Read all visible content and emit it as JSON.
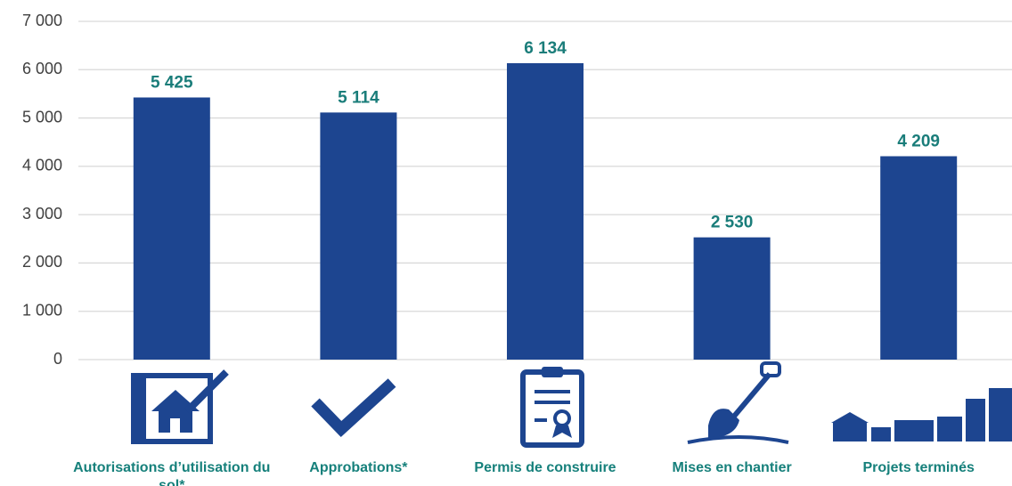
{
  "chart_data": {
    "type": "bar",
    "categories": [
      "Autorisations d’utilisation du sol*",
      "Approbations*",
      "Permis de construire",
      "Mises en chantier",
      "Projets terminés"
    ],
    "values": [
      5425,
      5114,
      6134,
      2530,
      4209
    ],
    "value_labels": [
      "5 425",
      "5 114",
      "6 134",
      "2 530",
      "4 209"
    ],
    "color": "#1d4590",
    "ylim": [
      0,
      7000
    ],
    "yticks": [
      0,
      {
        "value": 1000,
        "label": "1 000"
      },
      {
        "value": 2000,
        "label": "2 000"
      },
      {
        "value": 3000,
        "label": "3 000"
      },
      {
        "value": 4000,
        "label": "4 000"
      },
      {
        "value": 5000,
        "label": "5 000"
      },
      {
        "value": 6000,
        "label": "6 000"
      },
      {
        "value": 7000,
        "label": "7 000"
      }
    ],
    "grid": true
  }
}
